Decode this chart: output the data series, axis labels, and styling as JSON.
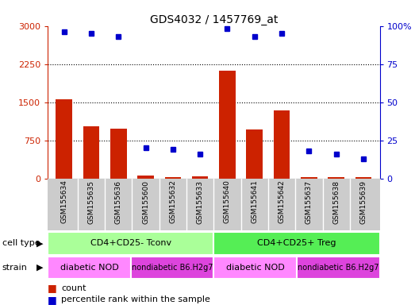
{
  "title": "GDS4032 / 1457769_at",
  "samples": [
    "GSM155634",
    "GSM155635",
    "GSM155636",
    "GSM155600",
    "GSM155632",
    "GSM155633",
    "GSM155640",
    "GSM155641",
    "GSM155642",
    "GSM155637",
    "GSM155638",
    "GSM155639"
  ],
  "counts": [
    1560,
    1020,
    980,
    50,
    30,
    40,
    2120,
    960,
    1340,
    30,
    25,
    20
  ],
  "percentile_ranks": [
    96,
    95,
    93,
    20,
    19,
    16,
    98,
    93,
    95,
    18,
    16,
    13
  ],
  "bar_color": "#cc2200",
  "dot_color": "#0000cc",
  "ylim_left": [
    0,
    3000
  ],
  "ylim_right": [
    0,
    100
  ],
  "yticks_left": [
    0,
    750,
    1500,
    2250,
    3000
  ],
  "yticks_right": [
    0,
    25,
    50,
    75,
    100
  ],
  "cell_type_groups": [
    {
      "label": "CD4+CD25- Tconv",
      "start": 0,
      "end": 6,
      "color": "#aaff99"
    },
    {
      "label": "CD4+CD25+ Treg",
      "start": 6,
      "end": 12,
      "color": "#55ee55"
    }
  ],
  "strain_groups": [
    {
      "label": "diabetic NOD",
      "start": 0,
      "end": 3,
      "color": "#ff88ff"
    },
    {
      "label": "nondiabetic B6.H2g7",
      "start": 3,
      "end": 6,
      "color": "#dd44dd"
    },
    {
      "label": "diabetic NOD",
      "start": 6,
      "end": 9,
      "color": "#ff88ff"
    },
    {
      "label": "nondiabetic B6.H2g7",
      "start": 9,
      "end": 12,
      "color": "#dd44dd"
    }
  ],
  "legend_count_color": "#cc2200",
  "legend_pct_color": "#0000cc",
  "cell_type_label": "cell type",
  "strain_label": "strain",
  "bg_color": "#ffffff",
  "sample_box_color": "#cccccc",
  "sample_box_divider": "#ffffff"
}
